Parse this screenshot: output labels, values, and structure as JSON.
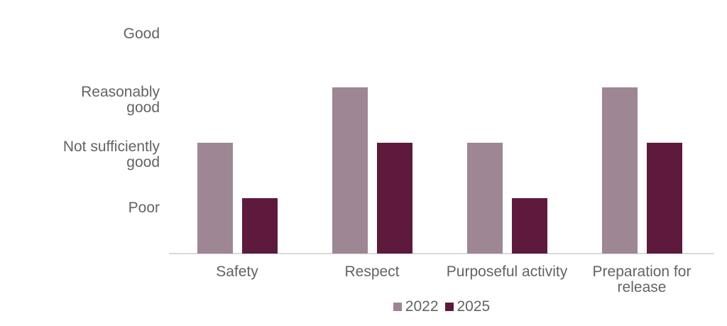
{
  "chart_data": {
    "type": "bar",
    "title": "",
    "xlabel": "",
    "ylabel": "",
    "categories": [
      "Safety",
      "Respect",
      "Purposeful activity",
      "Preparation for release"
    ],
    "category_display": [
      "Safety",
      "Respect",
      "Purposeful activity",
      "Preparation for\nrelease"
    ],
    "series": [
      {
        "name": "2022",
        "color": "#9e8695",
        "values": [
          2,
          3,
          2,
          3
        ],
        "value_labels": [
          "Not sufficiently good",
          "Reasonably good",
          "Not sufficiently good",
          "Reasonably good"
        ]
      },
      {
        "name": "2025",
        "color": "#5e1a3d",
        "values": [
          1,
          2,
          1,
          2
        ],
        "value_labels": [
          "Poor",
          "Not sufficiently good",
          "Poor",
          "Not sufficiently good"
        ]
      }
    ],
    "y_axis": {
      "type": "ordinal",
      "range": [
        0,
        4
      ],
      "tick_values": [
        4,
        3,
        2,
        1
      ],
      "tick_labels": [
        "Good",
        "Reasonably good",
        "Not sufficiently good",
        "Poor"
      ],
      "tick_display": [
        "Good",
        "Reasonably\ngood",
        "Not sufficiently\ngood",
        "Poor"
      ]
    },
    "legend": {
      "position": "bottom-center",
      "entries": [
        "2022",
        "2025"
      ]
    },
    "grid": false,
    "axis_line_color": "#d9d9d9",
    "text_color": "#636363"
  }
}
